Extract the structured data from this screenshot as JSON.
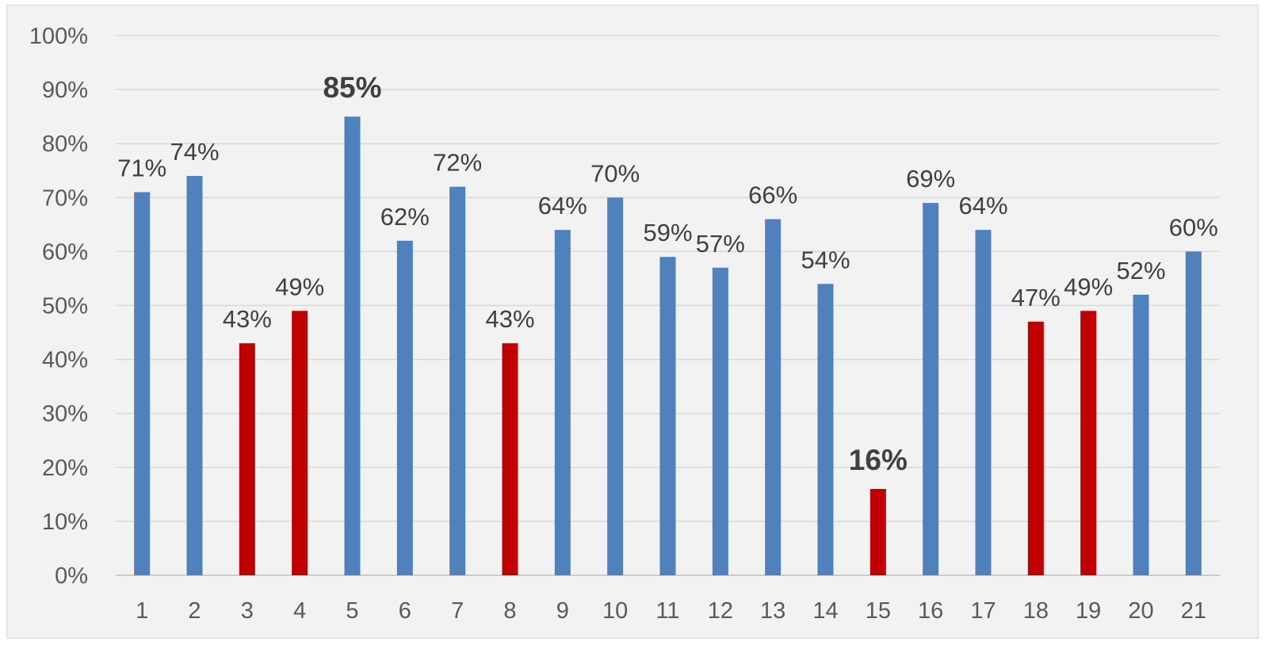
{
  "chart_data": {
    "type": "bar",
    "categories": [
      "1",
      "2",
      "3",
      "4",
      "5",
      "6",
      "7",
      "8",
      "9",
      "10",
      "11",
      "12",
      "13",
      "14",
      "15",
      "16",
      "17",
      "18",
      "19",
      "20",
      "21"
    ],
    "values": [
      71,
      74,
      43,
      49,
      85,
      62,
      72,
      43,
      64,
      70,
      59,
      57,
      66,
      54,
      16,
      69,
      64,
      47,
      49,
      52,
      60
    ],
    "labels": [
      "71%",
      "74%",
      "43%",
      "49%",
      "85%",
      "62%",
      "72%",
      "43%",
      "64%",
      "70%",
      "59%",
      "57%",
      "66%",
      "54%",
      "16%",
      "69%",
      "64%",
      "47%",
      "49%",
      "52%",
      "60%"
    ],
    "bar_colors": [
      "#4f81bd",
      "#4f81bd",
      "#c00000",
      "#c00000",
      "#4f81bd",
      "#4f81bd",
      "#4f81bd",
      "#c00000",
      "#4f81bd",
      "#4f81bd",
      "#4f81bd",
      "#4f81bd",
      "#4f81bd",
      "#4f81bd",
      "#c00000",
      "#4f81bd",
      "#4f81bd",
      "#c00000",
      "#c00000",
      "#4f81bd",
      "#4f81bd"
    ],
    "highlighted_labels": [
      "5",
      "15"
    ],
    "y_ticks": [
      "0%",
      "10%",
      "20%",
      "30%",
      "40%",
      "50%",
      "60%",
      "70%",
      "80%",
      "90%",
      "100%"
    ],
    "ylim": [
      0,
      100
    ],
    "grid": true,
    "title": "",
    "xlabel": "",
    "ylabel": ""
  },
  "colors": {
    "blue": "#4f81bd",
    "red": "#c00000",
    "background": "#f2f2f2"
  }
}
